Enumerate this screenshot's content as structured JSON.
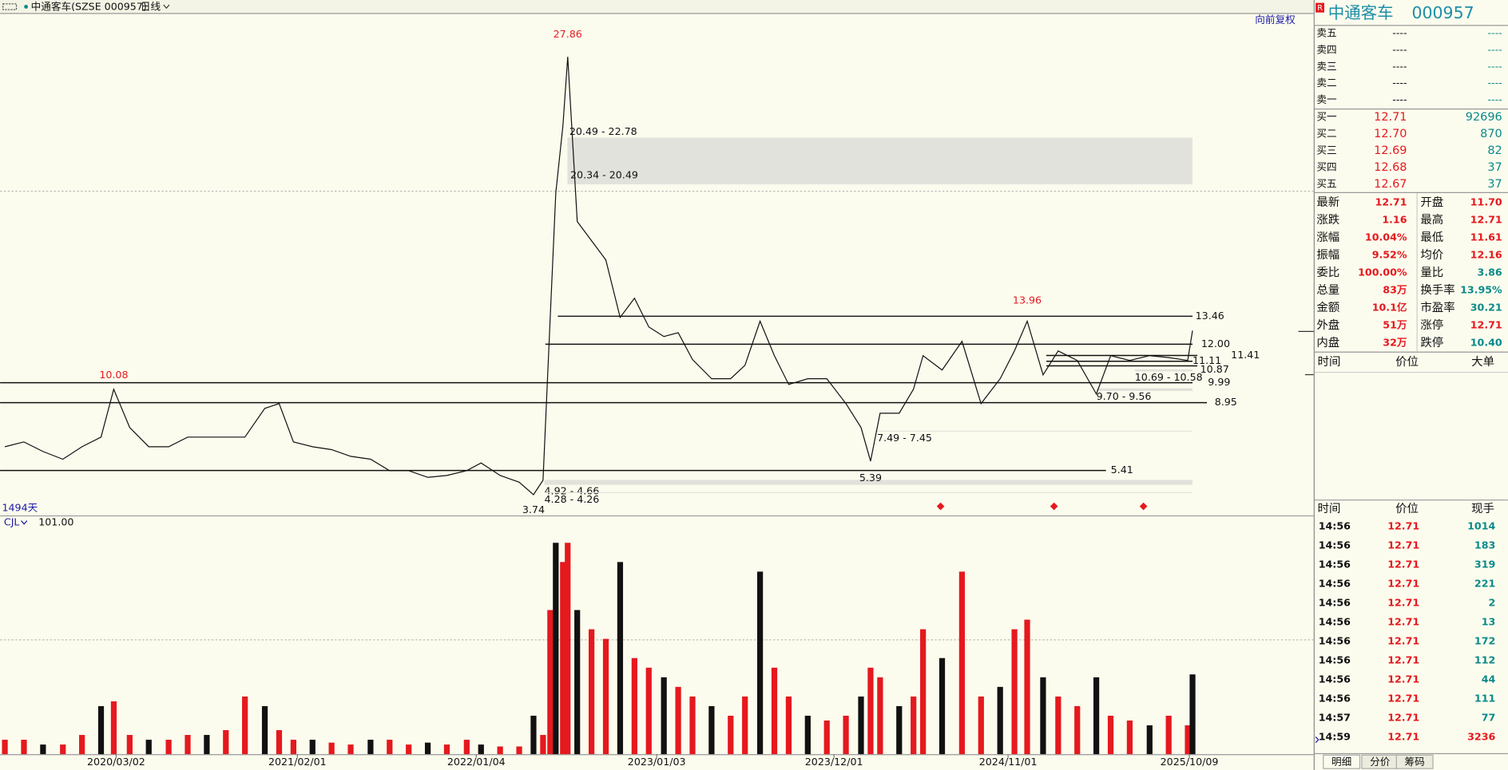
{
  "header": {
    "title": "中通客车(SZSE 000957)",
    "period": "日线"
  },
  "chart_data": [
    {
      "type": "line",
      "subtitle": "向前复权",
      "days_label": "1494天",
      "color": "#111111",
      "x": [
        0,
        24,
        48,
        73,
        97,
        121,
        137,
        157,
        181,
        206,
        230,
        254,
        278,
        302,
        327,
        345,
        363,
        387,
        411,
        435,
        460,
        484,
        508,
        532,
        556,
        581,
        599,
        623,
        647,
        665,
        677,
        686,
        693,
        702,
        708,
        720,
        738,
        756,
        774,
        792,
        810,
        829,
        847,
        865,
        889,
        913,
        931,
        950,
        968,
        986,
        1010,
        1034,
        1058,
        1077,
        1089,
        1101,
        1125,
        1143,
        1155,
        1179,
        1204,
        1228,
        1252,
        1270,
        1286,
        1306,
        1325,
        1349,
        1373,
        1391,
        1415,
        1440,
        1464,
        1488,
        1494
      ],
      "values": [
        6.65,
        6.9,
        6.4,
        6.0,
        6.65,
        7.15,
        9.65,
        7.65,
        6.65,
        6.65,
        7.15,
        7.15,
        7.15,
        7.15,
        8.65,
        8.9,
        6.9,
        6.65,
        6.5,
        6.15,
        6.0,
        5.4,
        5.4,
        5.05,
        5.15,
        5.4,
        5.8,
        5.15,
        4.8,
        4.15,
        4.9,
        13.4,
        19.9,
        23.4,
        27.0,
        18.4,
        17.4,
        16.4,
        13.4,
        14.4,
        12.9,
        12.4,
        12.6,
        11.2,
        10.2,
        10.2,
        10.9,
        13.2,
        11.4,
        9.9,
        10.2,
        10.2,
        8.9,
        7.65,
        5.9,
        8.4,
        8.4,
        9.65,
        11.4,
        10.65,
        12.15,
        8.9,
        10.2,
        11.65,
        13.2,
        10.4,
        11.65,
        11.15,
        9.4,
        11.4,
        11.15,
        11.4,
        11.3,
        11.15,
        12.71
      ],
      "xlim": [
        0,
        1494
      ],
      "ylim": [
        3.04,
        29.26
      ],
      "levels": [
        13.46,
        {
          "value": 12,
          "label": "12.00"
        },
        11.41,
        11.11,
        10.87,
        9.99,
        8.95,
        5.41
      ],
      "zones": [
        {
          "label": "20.49 - 22.78",
          "low": 20.49,
          "high": 22.78
        },
        {
          "label": "20.34 - 20.49",
          "low": 20.34,
          "high": 20.49
        },
        {
          "label": "10.69 - 10.58",
          "low": 10.58,
          "high": 10.69
        },
        {
          "label": "9.70 - 9.56",
          "low": 9.56,
          "high": 9.7
        },
        {
          "label": "7.49 - 7.45",
          "low": 7.45,
          "high": 7.49
        },
        {
          "label": "4.92 - 4.66",
          "low": 4.66,
          "high": 4.92
        },
        {
          "label": "4.28 - 4.26",
          "low": 4.26,
          "high": 4.28
        }
      ],
      "highs": [
        {
          "x": 708,
          "value": 27.86
        },
        {
          "x": 137,
          "value": 10.08
        },
        {
          "x": 1286,
          "value": 13.96
        }
      ],
      "lows": [
        {
          "x": 1089,
          "value": 5.39
        },
        {
          "x": 665,
          "value": 3.74
        }
      ]
    },
    {
      "type": "bar",
      "indicator": "CJL",
      "indicator_value": "101.00",
      "color": "#e5191e",
      "x": [
        0,
        24,
        48,
        73,
        97,
        121,
        137,
        157,
        181,
        206,
        230,
        254,
        278,
        302,
        327,
        345,
        363,
        387,
        411,
        435,
        460,
        484,
        508,
        532,
        556,
        581,
        599,
        623,
        647,
        665,
        677,
        686,
        693,
        702,
        708,
        720,
        738,
        756,
        774,
        792,
        810,
        829,
        847,
        865,
        889,
        913,
        931,
        950,
        968,
        986,
        1010,
        1034,
        1058,
        1077,
        1089,
        1101,
        1125,
        1143,
        1155,
        1179,
        1204,
        1228,
        1252,
        1270,
        1286,
        1306,
        1325,
        1349,
        1373,
        1391,
        1415,
        1440,
        1464,
        1488,
        1494
      ],
      "values": [
        15,
        15,
        10,
        10,
        20,
        50,
        55,
        20,
        15,
        15,
        20,
        20,
        25,
        60,
        50,
        25,
        15,
        15,
        12,
        10,
        15,
        15,
        10,
        12,
        10,
        15,
        10,
        8,
        8,
        40,
        20,
        150,
        220,
        200,
        220,
        150,
        130,
        120,
        200,
        100,
        90,
        80,
        70,
        60,
        50,
        40,
        60,
        190,
        90,
        60,
        40,
        35,
        40,
        60,
        90,
        80,
        50,
        60,
        130,
        100,
        190,
        60,
        70,
        130,
        140,
        80,
        60,
        50,
        80,
        40,
        35,
        30,
        40,
        30,
        83
      ],
      "xlim": [
        0,
        1494
      ],
      "ylim": [
        0,
        248
      ],
      "xticks": [
        {
          "value": 140,
          "label": "2020/03/02"
        },
        {
          "value": 368,
          "label": "2021/02/01"
        },
        {
          "value": 593,
          "label": "2022/01/04"
        },
        {
          "value": 820,
          "label": "2023/01/03"
        },
        {
          "value": 1043,
          "label": "2023/12/01"
        },
        {
          "value": 1262,
          "label": "2024/11/01"
        },
        {
          "value": 1490,
          "label": "2025/10/09"
        }
      ]
    }
  ],
  "quote_panel": {
    "badge": "R",
    "name": "中通客车",
    "code": "000957",
    "asks": [
      [
        "卖五",
        "----",
        "----"
      ],
      [
        "卖四",
        "----",
        "----"
      ],
      [
        "卖三",
        "----",
        "----"
      ],
      [
        "卖二",
        "----",
        "----"
      ],
      [
        "卖一",
        "----",
        "----"
      ]
    ],
    "bids": [
      [
        "买一",
        "12.71",
        "92696"
      ],
      [
        "买二",
        "12.70",
        "870"
      ],
      [
        "买三",
        "12.69",
        "82"
      ],
      [
        "买四",
        "12.68",
        "37"
      ],
      [
        "买五",
        "12.67",
        "37"
      ]
    ],
    "stats": [
      [
        "最新",
        "12.71",
        "开盘",
        "11.70"
      ],
      [
        "涨跌",
        "1.16",
        "最高",
        "12.71"
      ],
      [
        "涨幅",
        "10.04%",
        "最低",
        "11.61"
      ],
      [
        "振幅",
        "9.52%",
        "均价",
        "12.16"
      ],
      [
        "委比",
        "100.00%",
        "量比",
        "3.86"
      ],
      [
        "总量",
        "83万",
        "换手率",
        "13.95%"
      ],
      [
        "金额",
        "10.1亿",
        "市盈率",
        "30.21"
      ],
      [
        "外盘",
        "51万",
        "涨停",
        "12.71"
      ],
      [
        "内盘",
        "32万",
        "跌停",
        "10.40"
      ]
    ],
    "big_orders_header": [
      "时间",
      "价位",
      "大单"
    ],
    "trades_header": [
      "时间",
      "价位",
      "现手"
    ],
    "trades": [
      [
        "14:56",
        "12.71",
        "1014"
      ],
      [
        "14:56",
        "12.71",
        "183"
      ],
      [
        "14:56",
        "12.71",
        "319"
      ],
      [
        "14:56",
        "12.71",
        "221"
      ],
      [
        "14:56",
        "12.71",
        "2"
      ],
      [
        "14:56",
        "12.71",
        "13"
      ],
      [
        "14:56",
        "12.71",
        "172"
      ],
      [
        "14:56",
        "12.71",
        "112"
      ],
      [
        "14:56",
        "12.71",
        "44"
      ],
      [
        "14:56",
        "12.71",
        "111"
      ],
      [
        "14:57",
        "12.71",
        "77"
      ],
      [
        "14:59",
        "12.71",
        "3236"
      ]
    ],
    "tabs": [
      "明细",
      "分价",
      "筹码"
    ]
  }
}
